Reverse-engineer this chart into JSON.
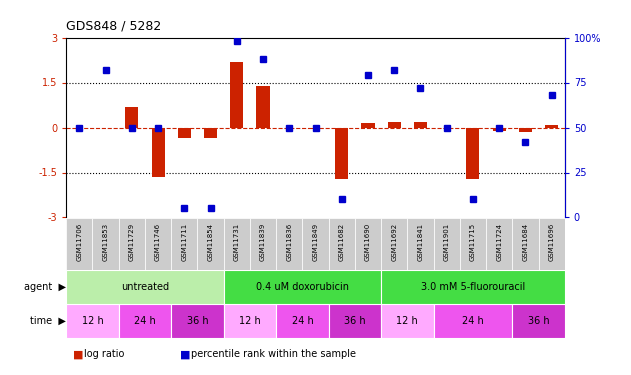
{
  "title": "GDS848 / 5282",
  "samples": [
    "GSM11706",
    "GSM11853",
    "GSM11729",
    "GSM11746",
    "GSM11711",
    "GSM11854",
    "GSM11731",
    "GSM11839",
    "GSM11836",
    "GSM11849",
    "GSM11682",
    "GSM11690",
    "GSM11692",
    "GSM11841",
    "GSM11901",
    "GSM11715",
    "GSM11724",
    "GSM11684",
    "GSM11696"
  ],
  "log_ratio": [
    0.0,
    0.0,
    0.7,
    -1.65,
    -0.35,
    -0.35,
    2.2,
    1.4,
    0.0,
    -0.05,
    -1.72,
    0.15,
    0.2,
    0.2,
    0.0,
    -1.72,
    -0.1,
    -0.15,
    0.1
  ],
  "percentile": [
    50,
    82,
    50,
    50,
    5,
    5,
    98,
    88,
    50,
    50,
    10,
    79,
    82,
    72,
    50,
    10,
    50,
    42,
    68
  ],
  "ylim": [
    -3,
    3
  ],
  "y2lim": [
    0,
    100
  ],
  "bar_color": "#cc2200",
  "dot_color": "#0000cc",
  "agent_colors": [
    "#bbeeaa",
    "#44dd44",
    "#44dd44"
  ],
  "agent_starts": [
    0,
    6,
    12
  ],
  "agent_ends": [
    6,
    12,
    19
  ],
  "agent_labels": [
    "untreated",
    "0.4 uM doxorubicin",
    "3.0 mM 5-fluorouracil"
  ],
  "time_groups": [
    {
      "label": "12 h",
      "start": 0,
      "end": 2,
      "color": "#ffaaff"
    },
    {
      "label": "24 h",
      "start": 2,
      "end": 4,
      "color": "#ee55ee"
    },
    {
      "label": "36 h",
      "start": 4,
      "end": 6,
      "color": "#cc33cc"
    },
    {
      "label": "12 h",
      "start": 6,
      "end": 8,
      "color": "#ffaaff"
    },
    {
      "label": "24 h",
      "start": 8,
      "end": 10,
      "color": "#ee55ee"
    },
    {
      "label": "36 h",
      "start": 10,
      "end": 12,
      "color": "#cc33cc"
    },
    {
      "label": "12 h",
      "start": 12,
      "end": 14,
      "color": "#ffaaff"
    },
    {
      "label": "24 h",
      "start": 14,
      "end": 17,
      "color": "#ee55ee"
    },
    {
      "label": "36 h",
      "start": 17,
      "end": 19,
      "color": "#cc33cc"
    }
  ],
  "sample_bg": "#cccccc",
  "bg_color": "#ffffff",
  "right_axis_color": "#0000cc",
  "dotted_line_color": "#000000",
  "zero_line_color": "#cc2200"
}
